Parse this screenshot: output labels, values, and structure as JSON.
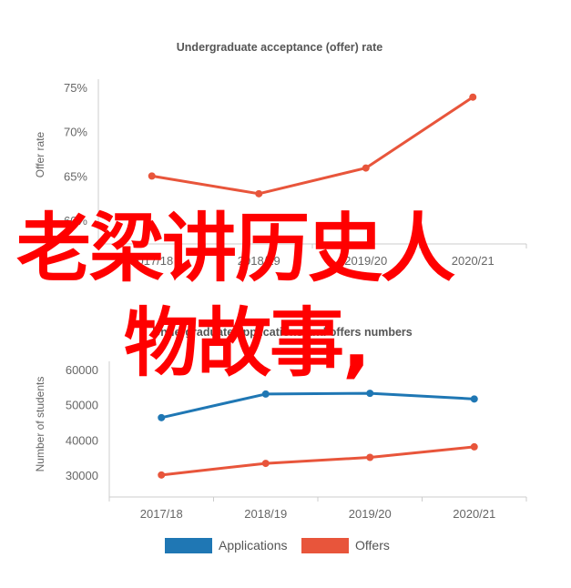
{
  "chart_data": [
    {
      "type": "line",
      "title": "Undergraduate acceptance (offer) rate",
      "ylabel": "Offer rate",
      "xlabel": "",
      "categories": [
        "2017/18",
        "2018/19",
        "2019/20",
        "2020/21"
      ],
      "ylim": [
        60,
        75
      ],
      "yticks": [
        "60%",
        "65%",
        "70%",
        "75%"
      ],
      "ytick_values": [
        60,
        65,
        70,
        75
      ],
      "grid": false,
      "series": [
        {
          "values": [
            65.1,
            63.1,
            66.0,
            74.0
          ],
          "color": "#e8553b"
        }
      ]
    },
    {
      "type": "line",
      "title": "Undergraduate applications and offers numbers",
      "ylabel": "Number of students",
      "xlabel": "",
      "categories": [
        "2017/18",
        "2018/19",
        "2019/20",
        "2020/21"
      ],
      "ylim": [
        30000,
        60000
      ],
      "yticks": [
        "30000",
        "40000",
        "50000",
        "60000"
      ],
      "ytick_values": [
        30000,
        40000,
        50000,
        60000
      ],
      "grid": false,
      "legend": "bottom",
      "series": [
        {
          "name": "Applications",
          "values": [
            46600,
            53300,
            53500,
            51900
          ],
          "color": "#1f77b4"
        },
        {
          "name": "Offers",
          "values": [
            30300,
            33600,
            35300,
            38300
          ],
          "color": "#e8553b"
        }
      ]
    }
  ],
  "overlay": {
    "line1": "老梁讲历史人",
    "line2": "物故事,"
  }
}
